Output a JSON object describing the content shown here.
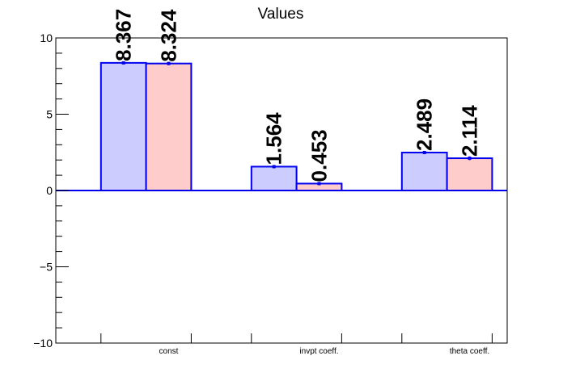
{
  "chart_data": {
    "type": "bar",
    "title": "Values",
    "categories": [
      "const",
      "invpt coeff.",
      "theta coeff."
    ],
    "series": [
      {
        "values": [
          8.367,
          1.564,
          2.489
        ],
        "errors": [
          0.05,
          0.05,
          0.05
        ],
        "fill": "#ccccff",
        "stroke": "#0000ee"
      },
      {
        "values": [
          8.324,
          0.453,
          2.114
        ],
        "errors": [
          0.1,
          0.08,
          0.12
        ],
        "fill": "#ffcccc",
        "stroke": "#0000ee"
      }
    ],
    "data_labels": [
      [
        "8.367",
        "1.564",
        "2.489"
      ],
      [
        "8.324",
        "0.453",
        "2.114"
      ]
    ],
    "ylim": [
      -10,
      10
    ],
    "yticks": [
      -10,
      -5,
      0,
      5,
      10
    ],
    "ytick_labels": [
      "−10",
      "−5",
      "0",
      "5",
      "10"
    ],
    "xlabel": "",
    "ylabel": "",
    "grid": false,
    "zero_line": true
  }
}
